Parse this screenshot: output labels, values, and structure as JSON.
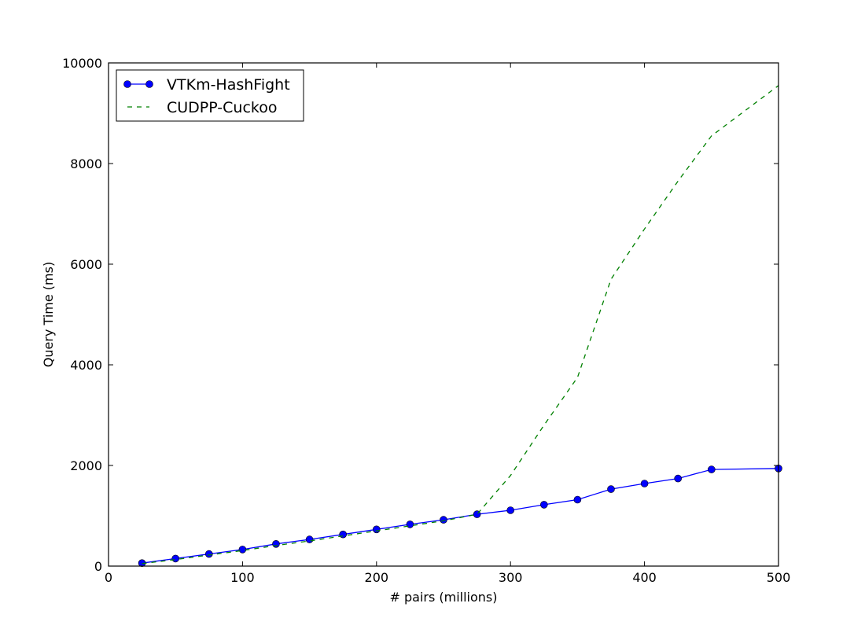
{
  "chart_data": {
    "type": "line",
    "xlabel": "# pairs (millions)",
    "ylabel": "Query Time (ms)",
    "xlim": [
      0,
      500
    ],
    "ylim": [
      0,
      10000
    ],
    "x_ticks": [
      0,
      100,
      200,
      300,
      400,
      500
    ],
    "y_ticks": [
      0,
      2000,
      4000,
      6000,
      8000,
      10000
    ],
    "grid": false,
    "legend_position": "top-left",
    "series": [
      {
        "name": "VTKm-HashFight",
        "color": "#0000ff",
        "line_style": "solid",
        "marker": "circle",
        "x": [
          25,
          50,
          75,
          100,
          125,
          150,
          175,
          200,
          225,
          250,
          275,
          300,
          325,
          350,
          375,
          400,
          425,
          450,
          500
        ],
        "y": [
          60,
          150,
          240,
          330,
          440,
          530,
          630,
          730,
          830,
          920,
          1030,
          1110,
          1220,
          1320,
          1530,
          1640,
          1740,
          1920,
          1940
        ]
      },
      {
        "name": "CUDPP-Cuckoo",
        "color": "#008000",
        "line_style": "dashed",
        "marker": "none",
        "x": [
          25,
          50,
          75,
          100,
          125,
          150,
          175,
          200,
          225,
          250,
          275,
          300,
          325,
          350,
          375,
          400,
          425,
          450,
          475,
          500
        ],
        "y": [
          50,
          130,
          220,
          310,
          410,
          500,
          600,
          700,
          800,
          900,
          1030,
          1800,
          2800,
          3750,
          5700,
          6700,
          7650,
          8550,
          9050,
          9550
        ]
      }
    ]
  }
}
